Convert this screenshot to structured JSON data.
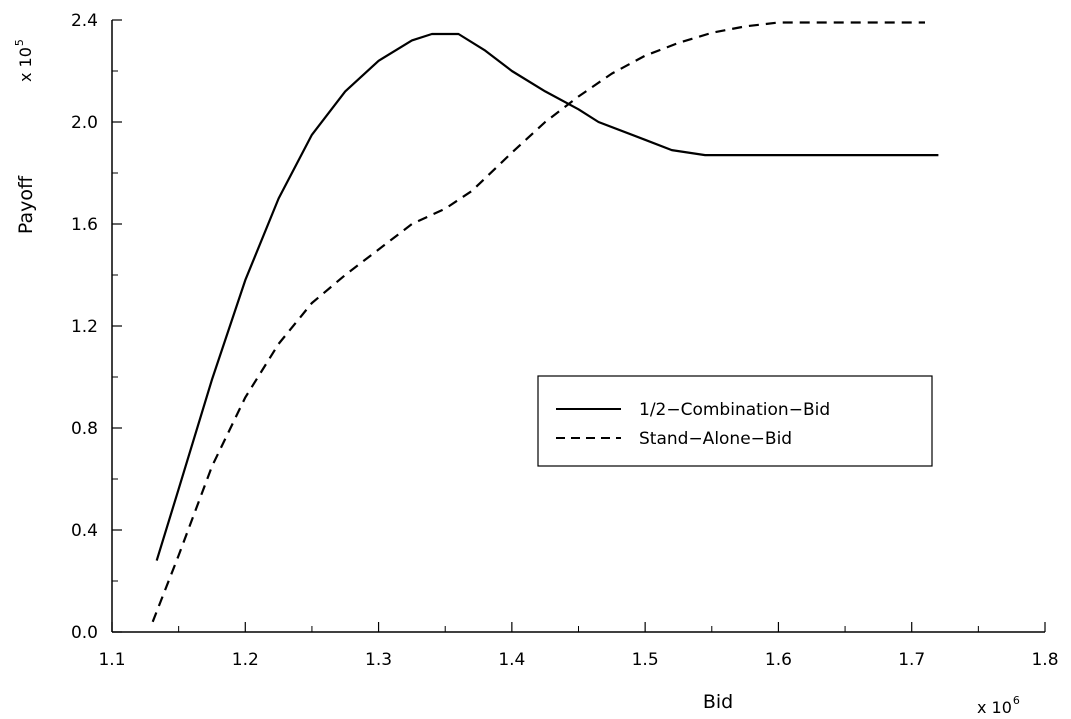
{
  "chart_data": {
    "type": "line",
    "title": "",
    "xlabel": "Bid",
    "ylabel": "Payoff",
    "x_scale_base": "x 10",
    "x_scale_exp": "6",
    "y_scale_base": "x 10",
    "y_scale_exp": "5",
    "xlim": [
      1.1,
      1.8
    ],
    "ylim": [
      0.0,
      2.4
    ],
    "x_ticks": [
      "1.1",
      "1.2",
      "1.3",
      "1.4",
      "1.5",
      "1.6",
      "1.7",
      "1.8"
    ],
    "y_ticks": [
      "0.0",
      "0.4",
      "0.8",
      "1.2",
      "1.6",
      "2.0",
      "2.4"
    ],
    "grid": false,
    "legend_position": "center-right",
    "series": [
      {
        "name": "1/2−Combination−Bid",
        "style": "solid",
        "color": "#000000",
        "x": [
          1.1335,
          1.15,
          1.175,
          1.2,
          1.225,
          1.25,
          1.275,
          1.3,
          1.325,
          1.34,
          1.36,
          1.38,
          1.4,
          1.425,
          1.45,
          1.465,
          1.5,
          1.52,
          1.545,
          1.6,
          1.65,
          1.7,
          1.72
        ],
        "y": [
          0.28,
          0.56,
          0.99,
          1.38,
          1.7,
          1.95,
          2.12,
          2.24,
          2.32,
          2.345,
          2.345,
          2.28,
          2.2,
          2.12,
          2.05,
          2.0,
          1.93,
          1.89,
          1.87,
          1.87,
          1.87,
          1.87,
          1.87
        ]
      },
      {
        "name": "Stand−Alone−Bid",
        "style": "dashed",
        "color": "#000000",
        "x": [
          1.1305,
          1.15,
          1.175,
          1.2,
          1.225,
          1.25,
          1.275,
          1.3,
          1.325,
          1.35,
          1.37,
          1.4,
          1.425,
          1.45,
          1.475,
          1.5,
          1.525,
          1.55,
          1.575,
          1.6,
          1.65,
          1.7,
          1.71
        ],
        "y": [
          0.04,
          0.3,
          0.65,
          0.92,
          1.13,
          1.29,
          1.4,
          1.5,
          1.6,
          1.66,
          1.73,
          1.88,
          2.0,
          2.1,
          2.19,
          2.26,
          2.31,
          2.35,
          2.375,
          2.39,
          2.39,
          2.39,
          2.39
        ]
      }
    ]
  }
}
